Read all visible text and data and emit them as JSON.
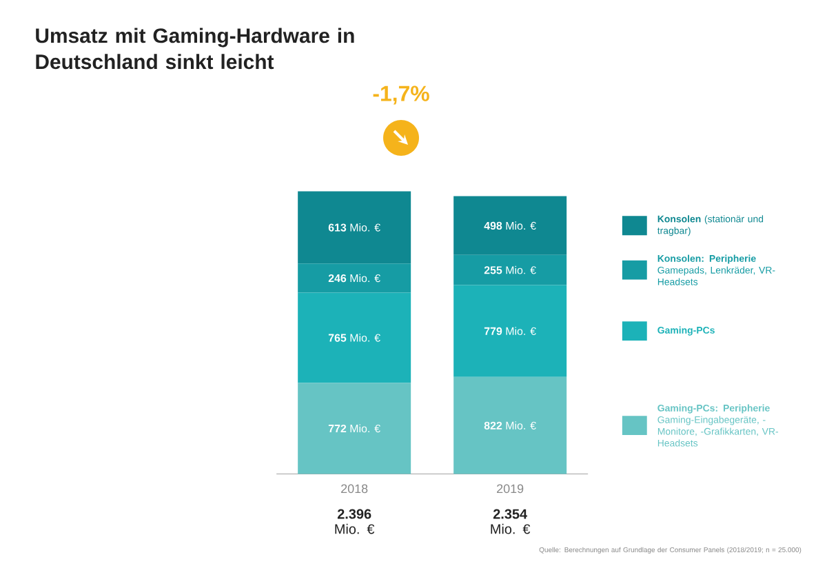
{
  "chart_data": {
    "type": "bar",
    "stacked": true,
    "title": "Umsatz mit Gaming-Hardware in Deutschland sinkt leicht",
    "categories": [
      "2018",
      "2019"
    ],
    "series": [
      {
        "name": "**Gaming-PCs: Peripherie** Gaming-Eingabegeräte, -Monitore, -Grafikkarten, VR-Headsets",
        "color": "#66c4c4",
        "values": [
          772,
          822
        ],
        "value_labels": [
          "**772** Mio. €",
          "**822** Mio. €"
        ]
      },
      {
        "name": "**Gaming-PCs**",
        "color": "#1cb2b8",
        "values": [
          765,
          779
        ],
        "value_labels": [
          "**765** Mio. €",
          "**779** Mio. €"
        ]
      },
      {
        "name": "**Konsolen: Peripherie** Gamepads, Lenkräder, VR-Headsets",
        "color": "#169ca4",
        "values": [
          246,
          255
        ],
        "value_labels": [
          "**246** Mio. €",
          "**255** Mio. €"
        ]
      },
      {
        "name": "**Konsolen** (stationär und tragbar)",
        "color": "#0f8891",
        "values": [
          613,
          498
        ],
        "value_labels": [
          "**613** Mio. €",
          "**498** Mio. €"
        ]
      }
    ],
    "totals": [
      "**2.396** Mio. €",
      "**2.354** Mio. €"
    ],
    "annotations": [
      "-1,7%",
      "Quelle: Berechnungen auf Grundlage der Consumer Panels (2018/2019; n = 25.000)"
    ],
    "legend": "right"
  }
}
